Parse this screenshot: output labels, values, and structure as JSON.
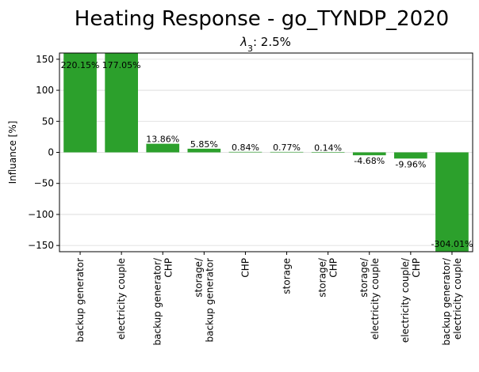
{
  "chart_data": {
    "type": "bar",
    "title": "Heating Response - go_TYNDP_2020",
    "subtitle": "λ3: 2.5%",
    "ylabel": "Influance [%]",
    "xlabel": "",
    "ylim": [
      -160,
      160
    ],
    "yticks": [
      -150,
      -100,
      -50,
      0,
      50,
      100,
      150
    ],
    "grid": "horizontal",
    "bar_color": "#2ca02c",
    "categories": [
      [
        "backup generator"
      ],
      [
        "electricity couple"
      ],
      [
        "backup generator/",
        "CHP"
      ],
      [
        "storage/",
        "backup generator"
      ],
      [
        "CHP"
      ],
      [
        "storage"
      ],
      [
        "storage/",
        "CHP"
      ],
      [
        "storage/",
        "electricity couple"
      ],
      [
        "electricity couple/",
        "CHP"
      ],
      [
        "backup generator/",
        "electricity couple"
      ]
    ],
    "values": [
      220.15,
      177.05,
      13.86,
      5.85,
      0.84,
      0.77,
      0.14,
      -4.68,
      -9.96,
      -304.01
    ],
    "value_labels": [
      "220.15%",
      "177.05%",
      "13.86%",
      "5.85%",
      "0.84%",
      "0.77%",
      "0.14%",
      "-4.68%",
      "-9.96%",
      "-304.01%"
    ]
  }
}
